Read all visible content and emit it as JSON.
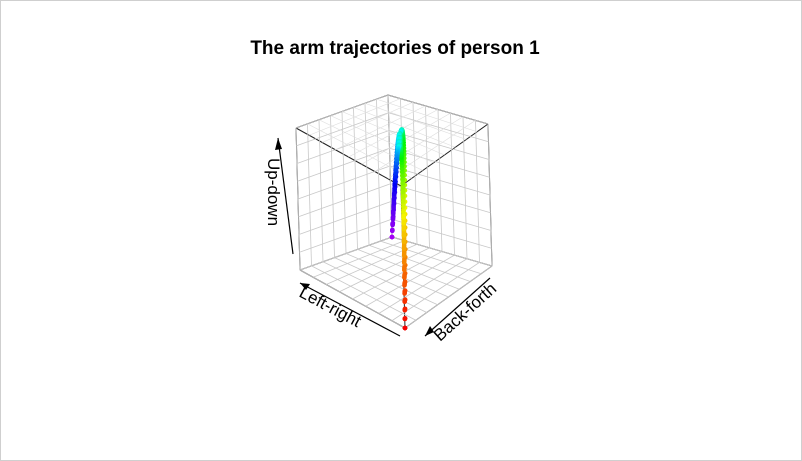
{
  "chart_data": {
    "type": "scatter",
    "projection": "3d",
    "title": "The arm trajectories of person 1",
    "xlabel": "Left-right",
    "ylabel": "Back-forth",
    "zlabel": "Up-down",
    "xlim": [
      0,
      1
    ],
    "ylim": [
      0,
      1
    ],
    "zlim": [
      0,
      1
    ],
    "grid": true,
    "color_scale": "rainbow (red at start through yellow, green, blue to violet at end)",
    "trajectories": [
      {
        "start": [
          1.0,
          0.0,
          0.0
        ],
        "peak": [
          0.55,
          0.55,
          1.0
        ],
        "end": [
          0.0,
          1.0,
          0.0
        ]
      },
      {
        "start": [
          1.0,
          0.0,
          0.0
        ],
        "peak": [
          0.52,
          0.56,
          0.96
        ],
        "end": [
          0.0,
          1.0,
          0.0
        ]
      },
      {
        "start": [
          1.0,
          0.0,
          0.0
        ],
        "peak": [
          0.5,
          0.58,
          0.92
        ],
        "end": [
          0.0,
          1.0,
          0.0
        ]
      },
      {
        "start": [
          1.0,
          0.0,
          0.0
        ],
        "peak": [
          0.48,
          0.6,
          0.88
        ],
        "end": [
          0.0,
          1.0,
          0.0
        ]
      },
      {
        "start": [
          1.0,
          0.0,
          0.0
        ],
        "peak": [
          0.46,
          0.62,
          0.84
        ],
        "end": [
          0.0,
          1.0,
          0.0
        ]
      }
    ],
    "points_per_trajectory": 70
  }
}
